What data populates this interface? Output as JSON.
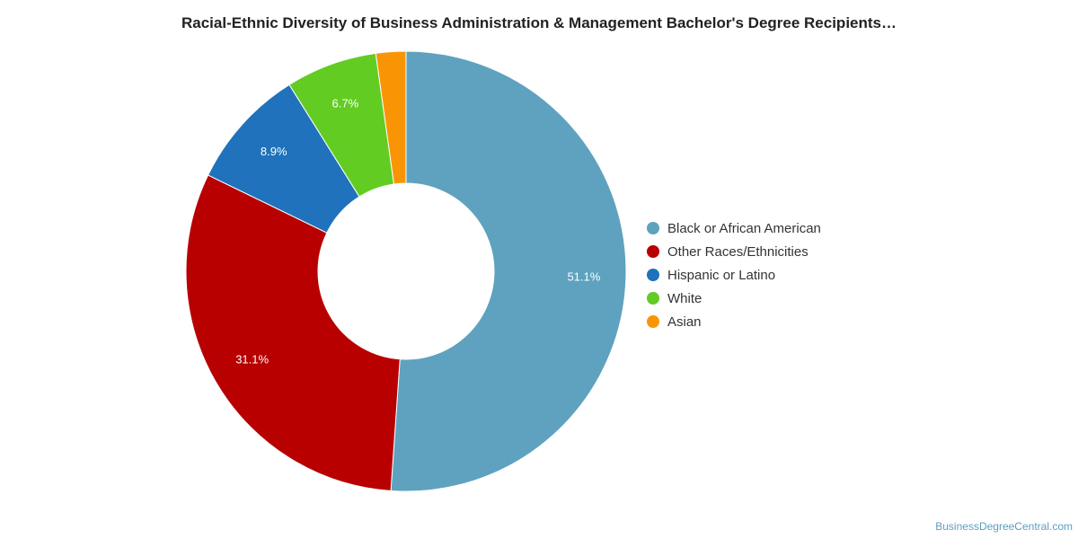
{
  "chart_data": {
    "type": "pie",
    "title": "Racial-Ethnic Diversity of Business Administration & Management Bachelor's Degree Recipients…",
    "categories": [
      "Black or African American",
      "Other Races/Ethnicities",
      "Hispanic or Latino",
      "White",
      "Asian"
    ],
    "values": [
      51.1,
      31.1,
      8.9,
      6.7,
      2.2
    ],
    "data_labels": [
      "51.1%",
      "31.1%",
      "8.9%",
      "6.7%",
      ""
    ],
    "colors": [
      "#5ea2bf",
      "#b80000",
      "#1f72bb",
      "#62cc23",
      "#f99505"
    ],
    "donut": true,
    "legend_placement": "right",
    "legend": [
      {
        "label": "Black or African American",
        "color": "#5ea2bf"
      },
      {
        "label": "Other Races/Ethnicities",
        "color": "#b80000"
      },
      {
        "label": "Hispanic or Latino",
        "color": "#1f72bb"
      },
      {
        "label": "White",
        "color": "#62cc23"
      },
      {
        "label": "Asian",
        "color": "#f99505"
      }
    ]
  },
  "watermark": "BusinessDegreeCentral.com"
}
